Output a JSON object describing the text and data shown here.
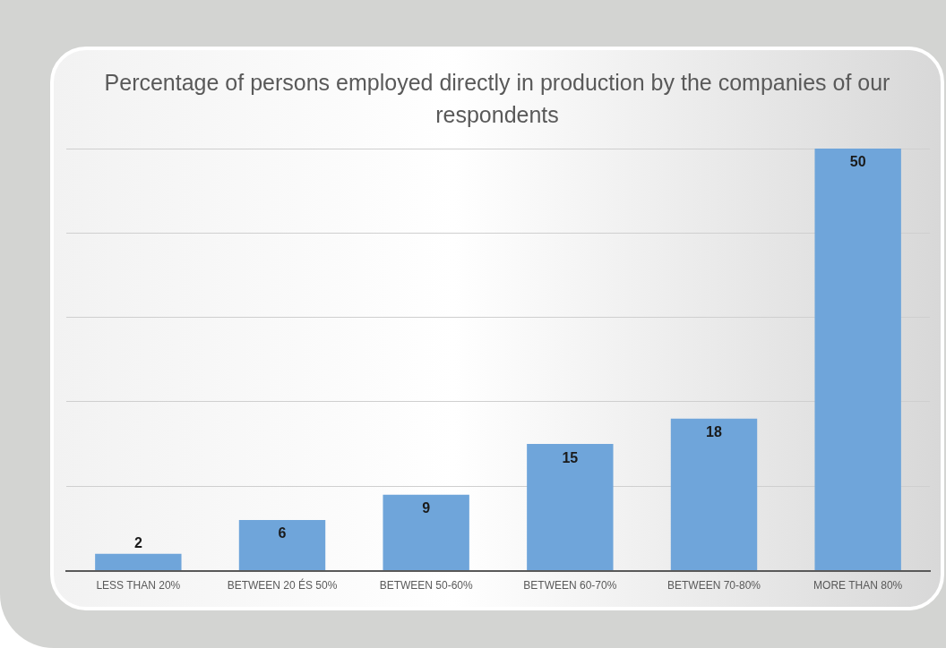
{
  "chart_data": {
    "type": "bar",
    "title": "Percentage of persons employed directly in production by the companies of our respondents",
    "categories": [
      "LESS THAN 20%",
      "BETWEEN 20 ÉS 50%",
      "BETWEEN 50-60%",
      "BETWEEN 60-70%",
      "BETWEEN 70-80%",
      "MORE THAN 80%"
    ],
    "values": [
      2,
      6,
      9,
      15,
      18,
      50
    ],
    "color": "#6fa5da",
    "ylim": [
      0,
      50
    ],
    "yticks": [
      {
        "value": 0,
        "label": null
      },
      {
        "value": 10,
        "label": null
      },
      {
        "value": 20,
        "label": null
      },
      {
        "value": 30,
        "label": null
      },
      {
        "value": 40,
        "label": null
      },
      {
        "value": 50,
        "label": null
      }
    ],
    "grid": "y",
    "tick_labels": "x",
    "data_labels": true,
    "legend": false
  }
}
